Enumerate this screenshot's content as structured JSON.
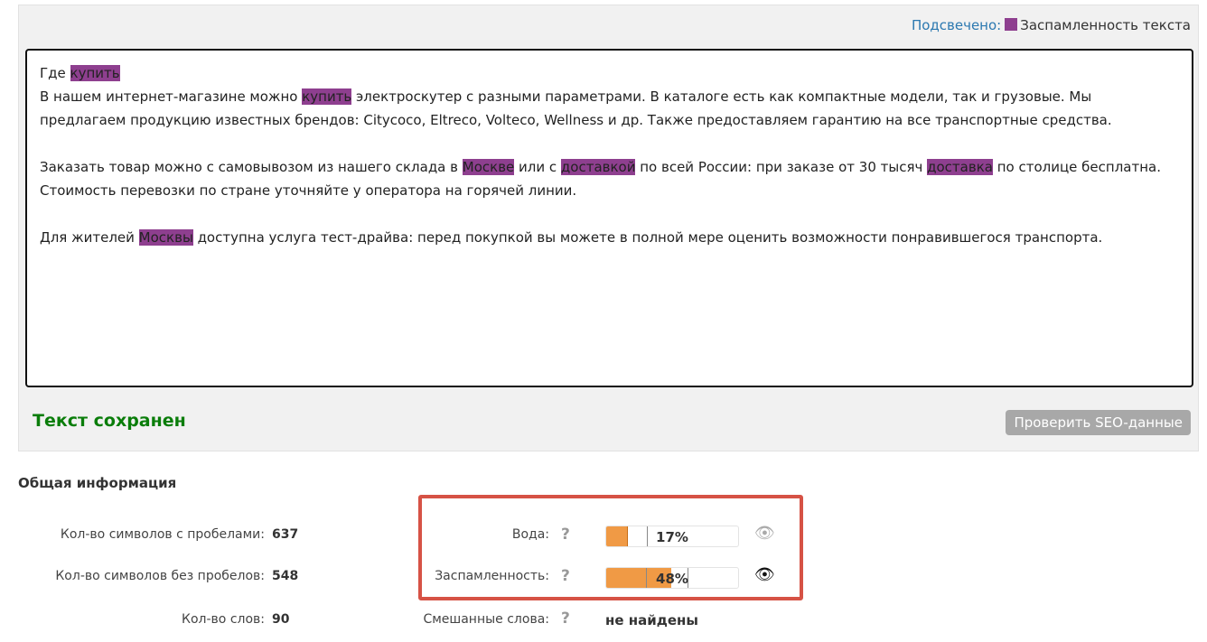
{
  "legend": {
    "label": "Подсвечено:",
    "item": "Заспамленность текста",
    "color": "#8e3f8f"
  },
  "editor": {
    "paragraphs": [
      [
        {
          "t": "Где "
        },
        {
          "t": "купить",
          "h": 1
        },
        {
          "t": "\nВ нашем интернет-магазине можно "
        },
        {
          "t": "купить",
          "h": 1
        },
        {
          "t": " электроскутер с разными параметрами. В каталоге есть как компактные модели, так и грузовые. Мы предлагаем продукцию известных брендов: Citycoco, Eltreco, Volteco, Wellness и др. Также предоставляем гарантию на все транспортные средства."
        }
      ],
      [
        {
          "t": "Заказать товар можно с самовывозом из нашего склада в "
        },
        {
          "t": "Москве",
          "h": 1
        },
        {
          "t": " или с "
        },
        {
          "t": "доставкой",
          "h": 1
        },
        {
          "t": " по всей России: при заказе от 30 тысяч "
        },
        {
          "t": "доставка",
          "h": 1
        },
        {
          "t": " по столице бесплатна. Стоимость перевозки по стране уточняйте у оператора на горячей линии."
        }
      ],
      [
        {
          "t": "Для жителей "
        },
        {
          "t": "Москвы",
          "h": 1
        },
        {
          "t": " доступна услуга тест-драйва: перед покупкой вы можете в полной мере оценить возможности понравившегося транспорта."
        }
      ]
    ]
  },
  "status": "Текст сохранен",
  "check_button": "Проверить SEO-данные",
  "info": {
    "title": "Общая информация",
    "chars_with_spaces": {
      "label": "Кол-во символов с пробелами:",
      "value": "637"
    },
    "chars_without_spaces": {
      "label": "Кол-во символов без пробелов:",
      "value": "548"
    },
    "words": {
      "label": "Кол-во слов:",
      "value": "90"
    },
    "water": {
      "label": "Вода:",
      "value": "17%",
      "percent": 17,
      "help": "?"
    },
    "spam": {
      "label": "Заспамленность:",
      "value": "48%",
      "percent": 48,
      "help": "?"
    },
    "mixed": {
      "label": "Смешанные слова:",
      "value": "не найдены",
      "help": "?"
    }
  },
  "colors": {
    "bar": "#f09a45",
    "highlight": "#8e3f8f",
    "saved": "#0a7d0a",
    "box": "#d65245"
  }
}
